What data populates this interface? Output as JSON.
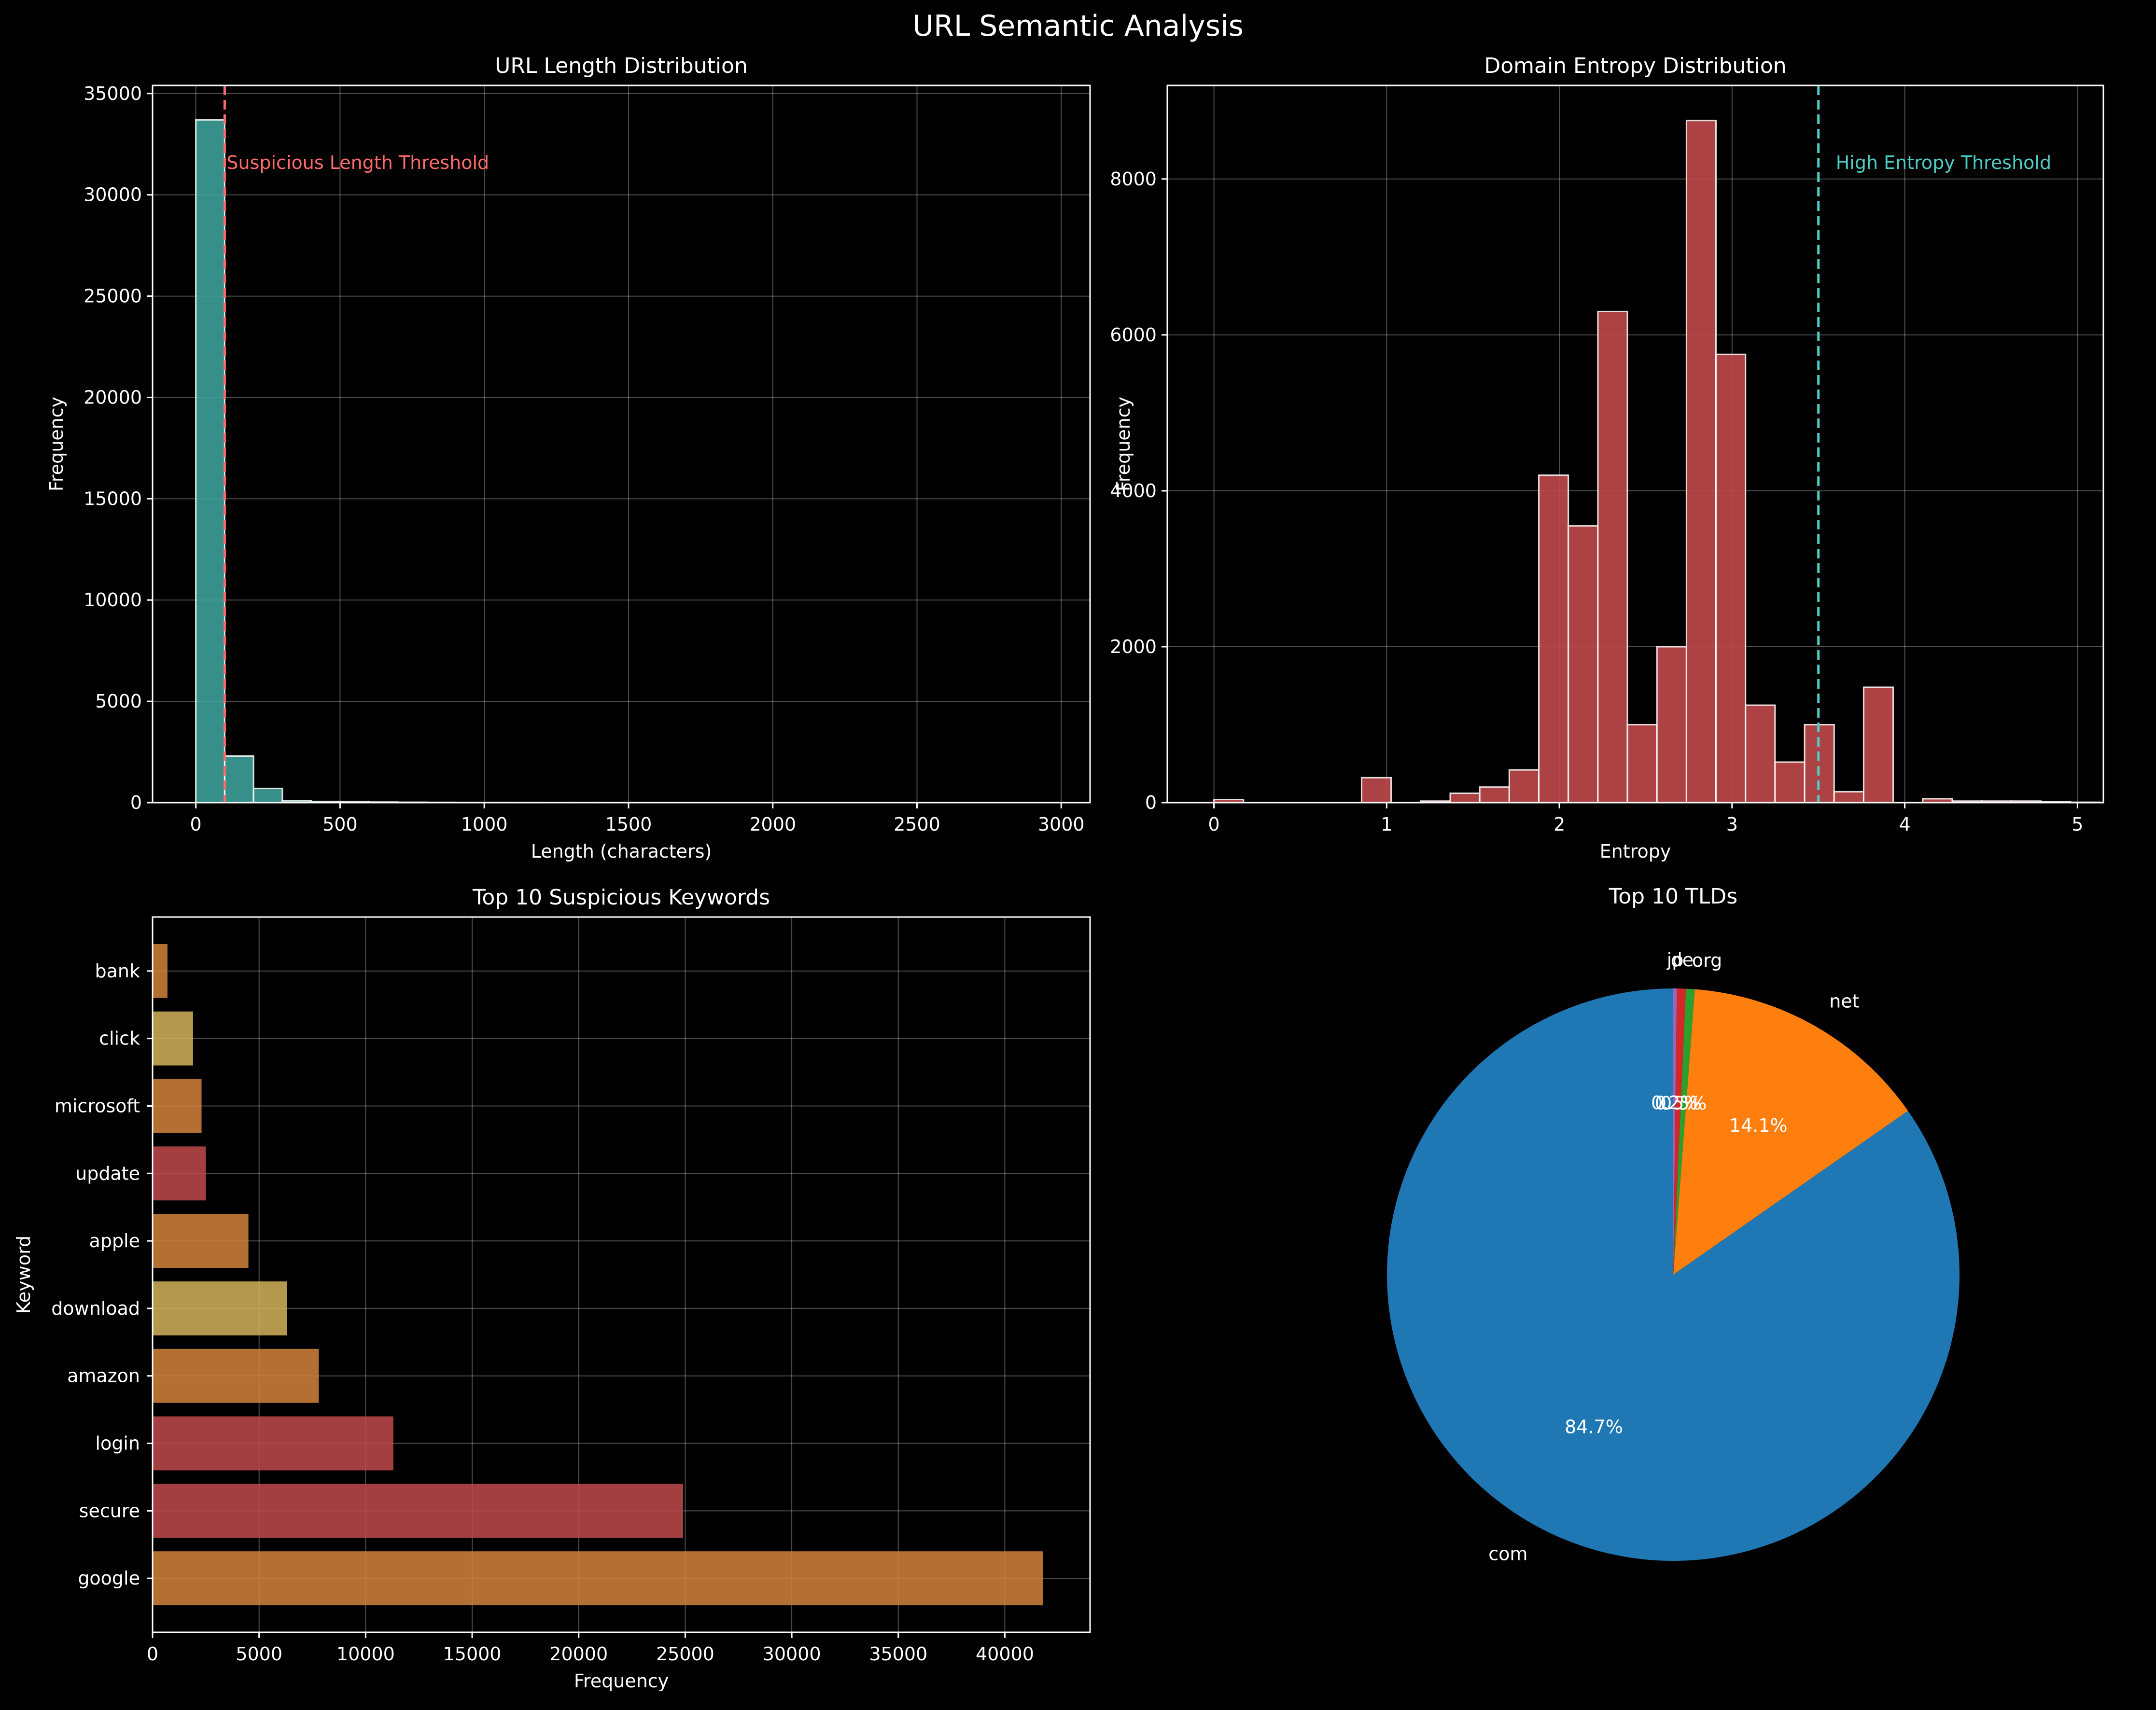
{
  "figure": {
    "title": "URL Semantic Analysis",
    "background": "#000000",
    "grid_color": "#ffffff",
    "text_color": "#ffffff"
  },
  "chart_data": [
    {
      "id": "url-length",
      "type": "bar",
      "subtype": "histogram",
      "title": "URL Length Distribution",
      "xlabel": "Length (characters)",
      "ylabel": "Frequency",
      "xlim": [
        -150,
        3100
      ],
      "ylim": [
        0,
        35400
      ],
      "xticks": [
        0,
        500,
        1000,
        1500,
        2000,
        2500,
        3000
      ],
      "yticks": [
        0,
        5000,
        10000,
        15000,
        20000,
        25000,
        30000,
        35000
      ],
      "bin_edges": [
        0,
        100,
        200,
        300,
        400,
        500,
        600,
        700,
        800,
        900,
        1000,
        1100,
        1200,
        1300,
        1400,
        1500,
        1600,
        1700,
        1800,
        1900,
        2000,
        2100,
        2200,
        2300,
        2400,
        2500,
        2600,
        2700,
        2800,
        2900,
        3000
      ],
      "values": [
        33700,
        2300,
        700,
        90,
        60,
        50,
        30,
        20,
        15,
        10,
        8,
        6,
        5,
        5,
        4,
        3,
        3,
        2,
        2,
        2,
        1,
        1,
        1,
        1,
        1,
        1,
        1,
        1,
        1,
        1
      ],
      "bar_color": "#40a8a0",
      "threshold": {
        "x": 100,
        "label": "Suspicious Length Threshold",
        "color": "#ff6b6b"
      },
      "grid": true
    },
    {
      "id": "domain-entropy",
      "type": "bar",
      "subtype": "histogram",
      "title": "Domain Entropy Distribution",
      "xlabel": "Entropy",
      "ylabel": "Frequency",
      "xlim": [
        -0.27,
        5.15
      ],
      "ylim": [
        0,
        9200
      ],
      "xticks": [
        0,
        1,
        2,
        3,
        4,
        5
      ],
      "yticks": [
        0,
        2000,
        4000,
        6000,
        8000
      ],
      "bin_start": 0,
      "bin_width": 0.171,
      "values": [
        40,
        0,
        0,
        0,
        0,
        320,
        0,
        20,
        120,
        200,
        420,
        4200,
        3550,
        6300,
        1000,
        2000,
        8750,
        5750,
        1250,
        520,
        1000,
        140,
        1480,
        0,
        50,
        20,
        20,
        20,
        10,
        5
      ],
      "bar_color": "#c0494c",
      "threshold": {
        "x": 3.5,
        "label": "High Entropy Threshold",
        "color": "#4ecdc4"
      },
      "grid": true
    },
    {
      "id": "suspicious-keywords",
      "type": "bar",
      "orientation": "horizontal",
      "title": "Top 10 Suspicious Keywords",
      "xlabel": "Frequency",
      "ylabel": "Keyword",
      "xlim": [
        0,
        44000
      ],
      "xticks": [
        0,
        5000,
        10000,
        15000,
        20000,
        25000,
        30000,
        35000,
        40000
      ],
      "categories": [
        "bank",
        "click",
        "microsoft",
        "update",
        "apple",
        "download",
        "amazon",
        "login",
        "secure",
        "google"
      ],
      "values": [
        700,
        1900,
        2300,
        2500,
        4500,
        6300,
        7800,
        11300,
        24900,
        41800
      ],
      "colors": [
        "#d4843c",
        "#d4b35b",
        "#d4843c",
        "#c0494c",
        "#d4843c",
        "#d4b35b",
        "#d4843c",
        "#c0494c",
        "#c0494c",
        "#d4843c"
      ],
      "grid": true
    },
    {
      "id": "top-tlds",
      "type": "pie",
      "title": "Top 10 TLDs",
      "start_angle": 90,
      "direction": "counterclockwise",
      "slices": [
        {
          "label": "com",
          "value": 84.7,
          "pct_label": "84.7%",
          "color": "#1f77b4"
        },
        {
          "label": "net",
          "value": 14.1,
          "pct_label": "14.1%",
          "color": "#ff7f0e"
        },
        {
          "label": "org",
          "value": 0.5,
          "pct_label": "0.5%",
          "color": "#2ca02c"
        },
        {
          "label": "de",
          "value": 0.5,
          "pct_label": "0.5%",
          "color": "#d62728"
        },
        {
          "label": "jp",
          "value": 0.2,
          "pct_label": "0.2%",
          "color": "#9467bd"
        }
      ]
    }
  ]
}
